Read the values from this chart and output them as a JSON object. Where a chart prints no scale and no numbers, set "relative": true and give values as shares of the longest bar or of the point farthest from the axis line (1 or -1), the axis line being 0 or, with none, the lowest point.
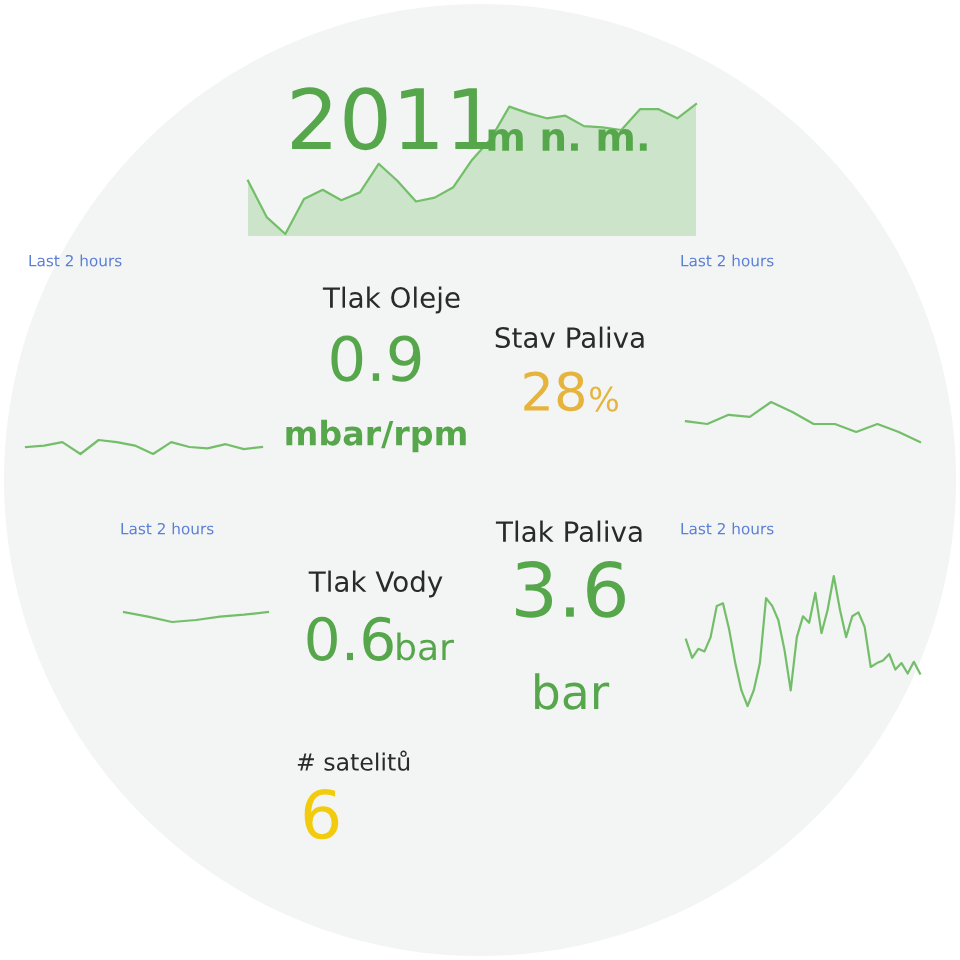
{
  "chart_data": [
    {
      "type": "area",
      "relative": true,
      "categories": [
        null,
        null,
        null,
        null,
        null,
        null,
        null,
        null,
        null,
        null,
        null,
        null,
        null,
        null,
        null,
        null,
        null,
        null,
        null,
        null,
        null,
        null,
        null,
        null,
        null
      ],
      "series": [
        {
          "color": "#73bf69",
          "values": [
            0.41,
            0.13,
            0,
            0.27,
            0.34,
            0.26,
            0.32,
            0.54,
            0.41,
            0.25,
            0.28,
            0.36,
            0.57,
            0.73,
            0.98,
            0.93,
            0.89,
            0.91,
            0.83,
            0.82,
            0.8,
            0.96,
            0.96,
            0.89,
            1
          ]
        }
      ]
    },
    {
      "type": "other",
      "annotations": [
        "2011",
        "m n. m."
      ],
      "colors": [
        "#56a64b",
        "#56a64b"
      ]
    },
    {
      "type": "line",
      "relative": true,
      "title": "Last 2 hours",
      "categories": [
        null,
        null,
        null,
        null,
        null,
        null,
        null,
        null,
        null,
        null,
        null,
        null,
        null,
        null
      ],
      "series": [
        {
          "color": "#73bf69",
          "values": [
            0.5,
            0.6,
            0.85,
            0,
            1,
            0.85,
            0.6,
            0,
            0.85,
            0.5,
            0.4,
            0.7,
            0.35,
            0.5
          ]
        }
      ]
    },
    {
      "type": "line",
      "relative": true,
      "title": "Last 2 hours",
      "categories": [
        null,
        null,
        null,
        null,
        null,
        null,
        null,
        null,
        null,
        null,
        null,
        null
      ],
      "series": [
        {
          "color": "#73bf69",
          "values": [
            0.52,
            0.45,
            0.68,
            0.63,
            1,
            0.75,
            0.45,
            0.45,
            0.25,
            0.45,
            0.25,
            0
          ]
        }
      ]
    },
    {
      "type": "other",
      "title": "Tlak Oleje",
      "annotations": [
        "0.9",
        "mbar/rpm"
      ],
      "colors": [
        "#56a64b",
        "#56a64b"
      ]
    },
    {
      "type": "other",
      "title": "Stav Paliva",
      "annotations": [
        "28",
        "%"
      ],
      "colors": [
        "#e6b43c",
        "#e6b43c"
      ]
    },
    {
      "type": "line",
      "relative": true,
      "title": "Last 2 hours",
      "categories": [
        null,
        null,
        null,
        null,
        null,
        null,
        null
      ],
      "series": [
        {
          "color": "#73bf69",
          "values": [
            1,
            0.53,
            0,
            0.2,
            0.53,
            0.73,
            1
          ]
        }
      ]
    },
    {
      "type": "line",
      "relative": true,
      "title": "Last 2 hours",
      "categories": [
        null,
        null,
        null,
        null,
        null,
        null,
        null,
        null,
        null,
        null,
        null,
        null,
        null,
        null,
        null,
        null,
        null,
        null,
        null,
        null,
        null,
        null,
        null,
        null,
        null,
        null,
        null,
        null,
        null,
        null,
        null,
        null,
        null,
        null,
        null,
        null,
        null,
        null,
        null
      ],
      "series": [
        {
          "color": "#73bf69",
          "values": [
            0.51,
            0.37,
            0.44,
            0.42,
            0.53,
            0.77,
            0.79,
            0.59,
            0.33,
            0.12,
            0,
            0.12,
            0.33,
            0.83,
            0.77,
            0.66,
            0.43,
            0.12,
            0.53,
            0.69,
            0.64,
            0.87,
            0.56,
            0.74,
            1,
            0.74,
            0.53,
            0.69,
            0.72,
            0.61,
            0.3,
            0.33,
            0.35,
            0.4,
            0.28,
            0.33,
            0.25,
            0.34,
            0.25
          ]
        }
      ]
    },
    {
      "type": "other",
      "title": "Tlak Paliva",
      "annotations": [
        "3.6",
        "bar"
      ],
      "colors": [
        "#56a64b",
        "#56a64b"
      ]
    },
    {
      "type": "other",
      "title": "Tlak Vody",
      "annotations": [
        "0.6",
        "bar"
      ],
      "colors": [
        "#56a64b",
        "#56a64b"
      ]
    },
    {
      "type": "other",
      "title": "# satelitů",
      "annotations": [
        "6"
      ],
      "colors": [
        "#f2cc0c"
      ]
    }
  ]
}
